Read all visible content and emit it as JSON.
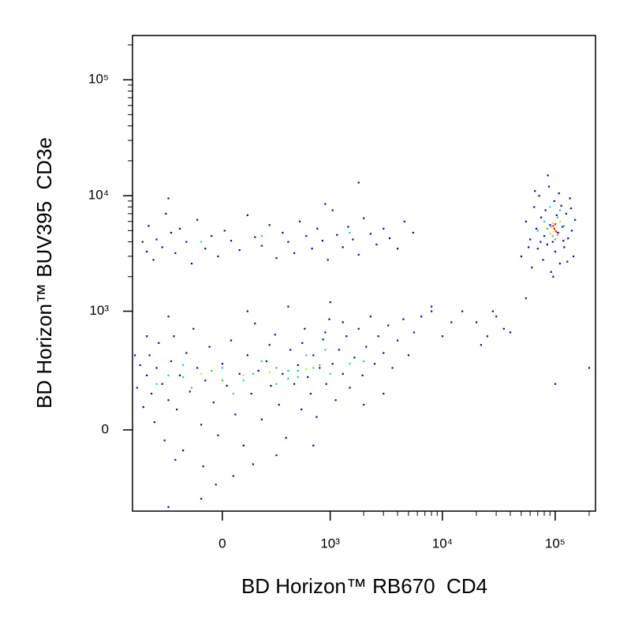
{
  "chart_data": {
    "type": "scatter",
    "xlabel": "BD Horizon™ RB670  CD4",
    "ylabel": "BD Horizon™ BUV395  CD3e",
    "xscale": "biexponential",
    "yscale": "biexponential",
    "xlim": [
      -683,
      227800
    ],
    "ylim": [
      -460,
      241000
    ],
    "xticks": [
      {
        "value": 0,
        "label": "0"
      },
      {
        "value": 1000,
        "label": "10³"
      },
      {
        "value": 10000,
        "label": "10⁴"
      },
      {
        "value": 100000,
        "label": "10⁵"
      }
    ],
    "yticks": [
      {
        "value": 0,
        "label": "0"
      },
      {
        "value": 1000,
        "label": "10³"
      },
      {
        "value": 10000,
        "label": "10⁴"
      },
      {
        "value": 100000,
        "label": "10⁵"
      }
    ],
    "xminorticks": [
      2000,
      3000,
      4000,
      5000,
      6000,
      7000,
      8000,
      9000,
      20000,
      30000,
      40000,
      50000,
      60000,
      70000,
      80000,
      90000,
      200000
    ],
    "yminorticks": [
      2000,
      3000,
      4000,
      5000,
      6000,
      7000,
      8000,
      9000,
      20000,
      30000,
      40000,
      50000,
      60000,
      70000,
      80000,
      90000,
      200000
    ],
    "series": [
      {
        "color": "#0000d0",
        "x": [
          -620,
          -580,
          -540,
          -500,
          -470,
          -450,
          -420,
          -400,
          -380,
          -350,
          -330,
          -300,
          -280,
          -260,
          -240,
          -220,
          -200,
          -180,
          -160,
          -140,
          -120,
          -100,
          -80,
          -60,
          -40,
          -20,
          0,
          20,
          40,
          60,
          80,
          100,
          120,
          140,
          160,
          180,
          200,
          230,
          260,
          290,
          320,
          350,
          380,
          420,
          460,
          500,
          540,
          580,
          620,
          660,
          700,
          750,
          800,
          860,
          920,
          980,
          1050,
          1120,
          1200,
          1300,
          1400,
          1500,
          1650,
          1800,
          1950,
          2100,
          2300,
          2500,
          2700,
          3000,
          3300,
          3600,
          4000,
          4500,
          5000,
          5600,
          6500,
          8000,
          10000,
          -90,
          50,
          -250,
          150,
          300,
          700,
          120,
          -300,
          400,
          1000,
          -500,
          -650,
          2000,
          3000,
          -100,
          -30,
          250,
          550,
          900,
          1300,
          -550,
          -500,
          -480,
          -430,
          -400,
          -350,
          -320,
          -280,
          -250,
          -220,
          -180,
          -150,
          -120,
          -80,
          -50,
          -20,
          10,
          40,
          80,
          120,
          160,
          200,
          250,
          300,
          350,
          400,
          460,
          520,
          600,
          680,
          760,
          850,
          950,
          1050,
          1150,
          1300,
          1450,
          1600,
          1800,
          2000,
          2300,
          2600,
          3000,
          3400,
          4000,
          4600,
          5500,
          -300,
          1800,
          900,
          50000,
          55000,
          60000,
          62000,
          65000,
          68000,
          70000,
          72000,
          75000,
          78000,
          80000,
          82000,
          85000,
          88000,
          90000,
          92000,
          95000,
          98000,
          100000,
          103000,
          106000,
          110000,
          113000,
          116000,
          120000,
          125000,
          130000,
          135000,
          140000,
          145000,
          150000,
          58000,
          66000,
          74000,
          86000,
          96000,
          108000,
          118000,
          128000,
          138000,
          20000,
          25000,
          30000,
          35000,
          22000,
          28000,
          40000,
          15000,
          12000,
          8000,
          100000,
          200000,
          55000,
          -300
        ],
        "y": [
          180,
          320,
          90,
          250,
          400,
          150,
          30,
          300,
          520,
          200,
          -40,
          120,
          350,
          600,
          80,
          250,
          -80,
          420,
          160,
          700,
          300,
          20,
          220,
          480,
          110,
          -20,
          330,
          190,
          550,
          60,
          260,
          -60,
          400,
          150,
          780,
          280,
          40,
          350,
          190,
          620,
          100,
          260,
          -30,
          450,
          200,
          320,
          80,
          700,
          240,
          150,
          400,
          50,
          300,
          560,
          200,
          850,
          330,
          120,
          450,
          260,
          600,
          180,
          380,
          700,
          250,
          480,
          900,
          330,
          600,
          420,
          750,
          300,
          550,
          850,
          400,
          650,
          900,
          1000,
          600,
          -150,
          -200,
          -120,
          -140,
          -100,
          -60,
          1000,
          900,
          1100,
          1200,
          600,
          400,
          100,
          150,
          -350,
          -250,
          500,
          520,
          650,
          800,
          4000,
          3300,
          5500,
          2800,
          4200,
          3600,
          7000,
          4800,
          3200,
          5200,
          4000,
          2600,
          6200,
          3500,
          4500,
          3000,
          5000,
          4100,
          3400,
          6800,
          4400,
          3700,
          5600,
          2900,
          4800,
          4000,
          3200,
          6000,
          4500,
          3500,
          5200,
          4100,
          2800,
          7500,
          4600,
          3600,
          5400,
          4200,
          3100,
          6400,
          4700,
          3800,
          5200,
          4300,
          3500,
          6000,
          4800,
          9500,
          13000,
          8500,
          3000,
          6000,
          4200,
          2400,
          8000,
          5200,
          3500,
          10000,
          6500,
          2800,
          4500,
          7500,
          3800,
          12000,
          5600,
          2200,
          4000,
          9000,
          3300,
          6800,
          4800,
          2600,
          8200,
          5400,
          3600,
          7000,
          4300,
          9500,
          5000,
          3000,
          6200,
          3600,
          11000,
          4000,
          15000,
          2000,
          10500,
          4100,
          2700,
          7800,
          800,
          600,
          900,
          700,
          500,
          1000,
          650,
          1000,
          800,
          1100,
          200,
          300,
          1300,
          -420
        ]
      },
      {
        "color": "#20c8d8",
        "x": [
          -300,
          -150,
          0,
          100,
          200,
          300,
          400,
          500,
          700,
          1000,
          1500,
          -200,
          50,
          600,
          -400,
          2000,
          900,
          200,
          -100,
          1500,
          80000,
          95000,
          110000,
          70000,
          120000,
          90000
        ],
        "y": [
          250,
          180,
          300,
          220,
          350,
          200,
          280,
          240,
          300,
          260,
          330,
          320,
          150,
          400,
          200,
          350,
          450,
          4500,
          4000,
          4800,
          6000,
          4500,
          7500,
          5000,
          5500,
          8000
        ]
      },
      {
        "color": "#30d040",
        "x": [
          -200,
          0,
          150,
          300,
          500,
          800,
          -50,
          400,
          85000,
          105000,
          100000
        ],
        "y": [
          240,
          220,
          260,
          300,
          280,
          320,
          280,
          230,
          5200,
          6500,
          4200
        ]
      },
      {
        "color": "#e0e000",
        "x": [
          100,
          250,
          600,
          -100,
          95000,
          90000,
          110000
        ],
        "y": [
          250,
          270,
          290,
          260,
          5800,
          4700,
          6000
        ]
      },
      {
        "color": "#ff9000",
        "x": [
          100000,
          92000,
          105000
        ],
        "y": [
          5000,
          5400,
          4600
        ]
      },
      {
        "color": "#e82000",
        "x": [
          98000,
          102000,
          96000,
          100000
        ],
        "y": [
          5200,
          4900,
          5500,
          5700
        ]
      }
    ]
  }
}
